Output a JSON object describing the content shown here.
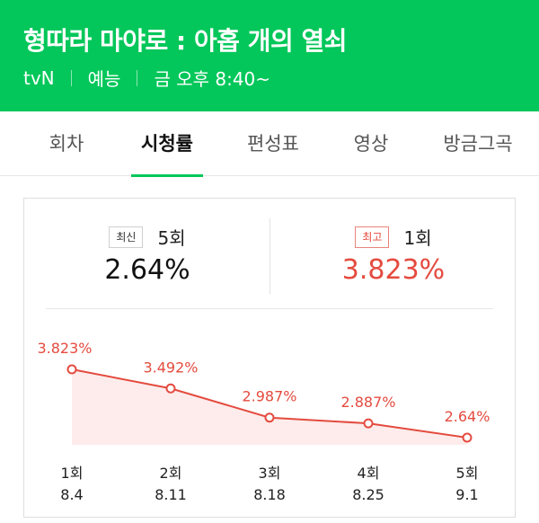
{
  "header": {
    "title": "형따라 마야로 : 아홉 개의 열쇠",
    "channel": "tvN",
    "genre": "예능",
    "schedule": "금 오후 8:40~",
    "bg_color": "#03c75a"
  },
  "tabs": [
    {
      "label": "회차",
      "active": false
    },
    {
      "label": "시청률",
      "active": true
    },
    {
      "label": "편성표",
      "active": false
    },
    {
      "label": "영상",
      "active": false
    },
    {
      "label": "방금그곡",
      "active": false
    }
  ],
  "stats": {
    "latest": {
      "badge": "최신",
      "episode": "5회",
      "value": "2.64%"
    },
    "highest": {
      "badge": "최고",
      "episode": "1회",
      "value": "3.823%"
    }
  },
  "chart_data": {
    "type": "area",
    "categories": [
      "1회",
      "2회",
      "3회",
      "4회",
      "5회"
    ],
    "dates": [
      "8.4",
      "8.11",
      "8.18",
      "8.25",
      "9.1"
    ],
    "values": [
      3.823,
      3.492,
      2.987,
      2.887,
      2.64
    ],
    "labels": [
      "3.823%",
      "3.492%",
      "2.987%",
      "2.887%",
      "2.64%"
    ],
    "line_color": "#e44b3f",
    "fill_color": "#fdeceb"
  }
}
